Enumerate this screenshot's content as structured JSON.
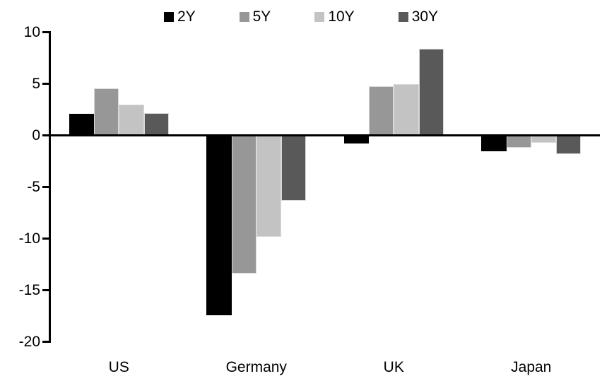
{
  "chart_data": {
    "type": "bar",
    "title": "",
    "xlabel": "",
    "ylabel": "",
    "grid": false,
    "legend_position": "top-center",
    "axis_color": "#000000",
    "background_color": "#ffffff",
    "ylim": [
      -20,
      10
    ],
    "yticks": [
      "10",
      "5",
      "0",
      "-5",
      "-10",
      "-15",
      "-20"
    ],
    "ytick_values": [
      10,
      5,
      0,
      -5,
      -10,
      -15,
      -20
    ],
    "categories": [
      "US",
      "Germany",
      "UK",
      "Japan"
    ],
    "series": [
      {
        "name": "2Y",
        "color": "#000000",
        "border_color": "#000000",
        "values": [
          2.1,
          -17.4,
          -0.8,
          -1.5
        ]
      },
      {
        "name": "5Y",
        "color": "#979797",
        "border_color": "#d9d9d9",
        "values": [
          4.6,
          -13.4,
          4.8,
          -1.2
        ]
      },
      {
        "name": "10Y",
        "color": "#c3c3c3",
        "border_color": "#d9d9d9",
        "values": [
          3.0,
          -9.8,
          5.0,
          -0.7
        ]
      },
      {
        "name": "30Y",
        "color": "#595959",
        "border_color": "#d9d9d9",
        "values": [
          2.2,
          -6.3,
          8.4,
          -1.8
        ]
      }
    ]
  }
}
